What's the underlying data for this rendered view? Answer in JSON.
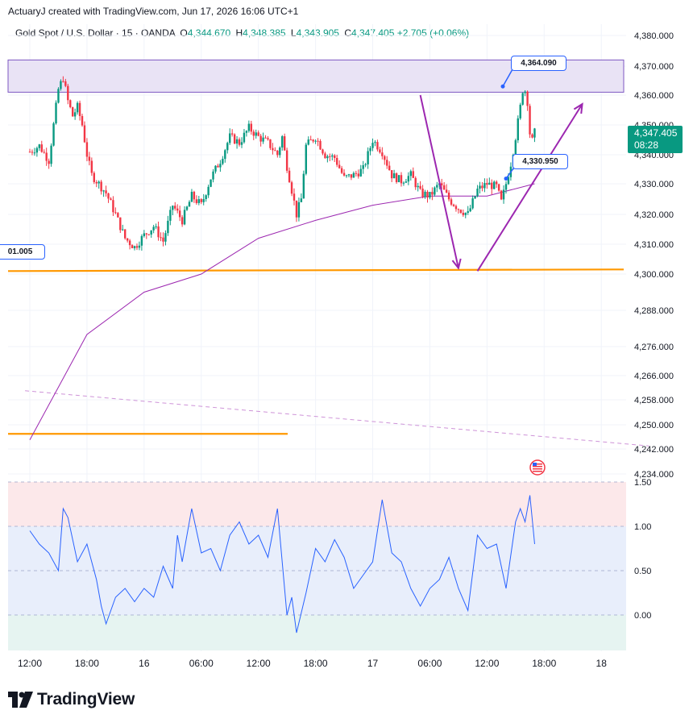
{
  "header": {
    "credit": "ActuaryJ created with TradingView.com, Jun 17, 2026 16:06 UTC+1"
  },
  "legend": {
    "symbol": "Gold Spot / U.S. Dollar · 15 · OANDA",
    "open_label": "O",
    "open": "4,344.670",
    "high_label": "H",
    "high": "4,348.385",
    "low_label": "L",
    "low": "4,343.905",
    "close_label": "C",
    "close": "4,347.405",
    "change": "+2.705 (+0.06%)"
  },
  "price_tag": {
    "price": "4,347.405",
    "countdown": "08:28"
  },
  "callouts": {
    "high": "4,364.090",
    "low": "4,330.950",
    "left_level": "01.005"
  },
  "colors": {
    "up": "#089981",
    "down": "#f23645",
    "ema": "#9c27b0",
    "support": "#ff9800",
    "zone": "#e9e3f5",
    "arrow": "#9c27b0",
    "osc": "#2962ff"
  },
  "logo": {
    "text": "TradingView"
  },
  "chart_data": {
    "type": "candlestick",
    "price_axis_ticks": [
      "4,380.000",
      "4,370.000",
      "4,360.000",
      "4,350.000",
      "4,340.000",
      "4,330.000",
      "4,320.000",
      "4,310.000",
      "4,300.000",
      "4,288.000",
      "4,276.000",
      "4,266.000",
      "4,258.000",
      "4,250.000",
      "4,242.000",
      "4,234.000"
    ],
    "price_axis_values": [
      4380,
      4370,
      4360,
      4350,
      4340,
      4330,
      4320,
      4310,
      4300,
      4288,
      4276,
      4266,
      4258,
      4250,
      4242,
      4234
    ],
    "time_axis_labels": [
      "12:00",
      "18:00",
      "16",
      "06:00",
      "12:00",
      "18:00",
      "17",
      "06:00",
      "12:00",
      "18:00",
      "18"
    ],
    "time_axis_hours": [
      0,
      6,
      12,
      18,
      24,
      30,
      36,
      42,
      48,
      54,
      60
    ],
    "ohlc": {
      "open": 4344.67,
      "high": 4348.385,
      "low": 4343.905,
      "close": 4347.405,
      "change": 2.705,
      "change_pct": 0.06
    },
    "price_path": [
      [
        0,
        4341
      ],
      [
        1,
        4343
      ],
      [
        2,
        4338
      ],
      [
        3,
        4362
      ],
      [
        3.5,
        4366
      ],
      [
        4,
        4358
      ],
      [
        4.5,
        4353
      ],
      [
        5,
        4356
      ],
      [
        5.5,
        4350
      ],
      [
        6,
        4340
      ],
      [
        6.5,
        4333
      ],
      [
        7,
        4331
      ],
      [
        8,
        4327
      ],
      [
        9,
        4320
      ],
      [
        10,
        4312
      ],
      [
        11,
        4309
      ],
      [
        12,
        4313
      ],
      [
        13,
        4316
      ],
      [
        14,
        4311
      ],
      [
        15,
        4323
      ],
      [
        16,
        4318
      ],
      [
        17,
        4326
      ],
      [
        18,
        4323
      ],
      [
        19,
        4332
      ],
      [
        20,
        4338
      ],
      [
        21,
        4346
      ],
      [
        22,
        4344
      ],
      [
        23,
        4349
      ],
      [
        24,
        4346
      ],
      [
        25,
        4344
      ],
      [
        26,
        4340
      ],
      [
        26.5,
        4346
      ],
      [
        27,
        4336
      ],
      [
        28,
        4320
      ],
      [
        28.5,
        4325
      ],
      [
        29,
        4343
      ],
      [
        30,
        4346
      ],
      [
        31,
        4340
      ],
      [
        32,
        4339
      ],
      [
        33,
        4332
      ],
      [
        34,
        4333
      ],
      [
        35,
        4335
      ],
      [
        36,
        4345
      ],
      [
        37,
        4341
      ],
      [
        38,
        4333
      ],
      [
        39,
        4331
      ],
      [
        40,
        4333
      ],
      [
        41,
        4327
      ],
      [
        42,
        4326
      ],
      [
        43,
        4330
      ],
      [
        44,
        4325
      ],
      [
        45,
        4322
      ],
      [
        46,
        4320
      ],
      [
        47,
        4328
      ],
      [
        48,
        4330
      ],
      [
        49,
        4329
      ],
      [
        49.5,
        4324
      ],
      [
        50,
        4330
      ],
      [
        50.5,
        4337
      ],
      [
        51,
        4346
      ],
      [
        51.5,
        4356
      ],
      [
        51.8,
        4363
      ],
      [
        52.2,
        4360
      ],
      [
        52.6,
        4343
      ],
      [
        53,
        4347.4
      ]
    ],
    "ema_path": [
      [
        0,
        4245
      ],
      [
        6,
        4280
      ],
      [
        12,
        4294
      ],
      [
        18,
        4300
      ],
      [
        24,
        4312
      ],
      [
        30,
        4318
      ],
      [
        36,
        4323
      ],
      [
        42,
        4326
      ],
      [
        48,
        4326
      ],
      [
        53,
        4330
      ]
    ],
    "zone": {
      "low": 4361,
      "high": 4372
    },
    "support_levels": [
      4301,
      4247
    ],
    "callout_points": [
      {
        "value": 4364.09
      },
      {
        "value": 4330.95
      }
    ],
    "arrows": [
      {
        "from": [
          41,
          4360
        ],
        "to": [
          45,
          4302
        ]
      },
      {
        "from": [
          47,
          4301
        ],
        "to": [
          58,
          4357
        ]
      }
    ],
    "dashed_trendline": {
      "from": [
        -0.5,
        4261
      ],
      "to": [
        65,
        4243
      ]
    },
    "oscillator": {
      "levels": [
        1.5,
        1.0,
        0.5,
        0.0
      ],
      "level_labels": [
        "1.50",
        "1.00",
        "0.50",
        "0.00"
      ],
      "bands": [
        {
          "from": 1.0,
          "to": 1.5,
          "color": "#fce8ea"
        },
        {
          "from": 0.0,
          "to": 1.0,
          "color": "#e8eefb"
        },
        {
          "from": -0.4,
          "to": 0.0,
          "color": "#e6f4f1"
        }
      ],
      "path": [
        [
          0,
          0.95
        ],
        [
          1,
          0.8
        ],
        [
          2,
          0.7
        ],
        [
          3,
          0.5
        ],
        [
          3.5,
          1.2
        ],
        [
          4,
          1.1
        ],
        [
          5,
          0.6
        ],
        [
          6,
          0.8
        ],
        [
          7,
          0.4
        ],
        [
          7.5,
          0.1
        ],
        [
          8,
          -0.1
        ],
        [
          9,
          0.2
        ],
        [
          10,
          0.3
        ],
        [
          11,
          0.15
        ],
        [
          12,
          0.3
        ],
        [
          13,
          0.2
        ],
        [
          14,
          0.55
        ],
        [
          15,
          0.3
        ],
        [
          15.5,
          0.9
        ],
        [
          16,
          0.6
        ],
        [
          17,
          1.2
        ],
        [
          18,
          0.7
        ],
        [
          19,
          0.75
        ],
        [
          20,
          0.5
        ],
        [
          21,
          0.9
        ],
        [
          22,
          1.05
        ],
        [
          23,
          0.8
        ],
        [
          24,
          0.9
        ],
        [
          25,
          0.65
        ],
        [
          26,
          1.2
        ],
        [
          27,
          0.0
        ],
        [
          27.5,
          0.2
        ],
        [
          28,
          -0.2
        ],
        [
          29,
          0.25
        ],
        [
          30,
          0.75
        ],
        [
          31,
          0.6
        ],
        [
          32,
          0.85
        ],
        [
          33,
          0.65
        ],
        [
          34,
          0.3
        ],
        [
          35,
          0.45
        ],
        [
          36,
          0.6
        ],
        [
          37,
          1.3
        ],
        [
          38,
          0.7
        ],
        [
          39,
          0.6
        ],
        [
          40,
          0.3
        ],
        [
          41,
          0.1
        ],
        [
          42,
          0.3
        ],
        [
          43,
          0.4
        ],
        [
          44,
          0.65
        ],
        [
          45,
          0.3
        ],
        [
          46,
          0.05
        ],
        [
          47,
          0.9
        ],
        [
          48,
          0.75
        ],
        [
          49,
          0.8
        ],
        [
          50,
          0.3
        ],
        [
          51,
          1.05
        ],
        [
          51.5,
          1.2
        ],
        [
          52,
          1.05
        ],
        [
          52.5,
          1.35
        ],
        [
          53,
          0.8
        ]
      ]
    }
  }
}
